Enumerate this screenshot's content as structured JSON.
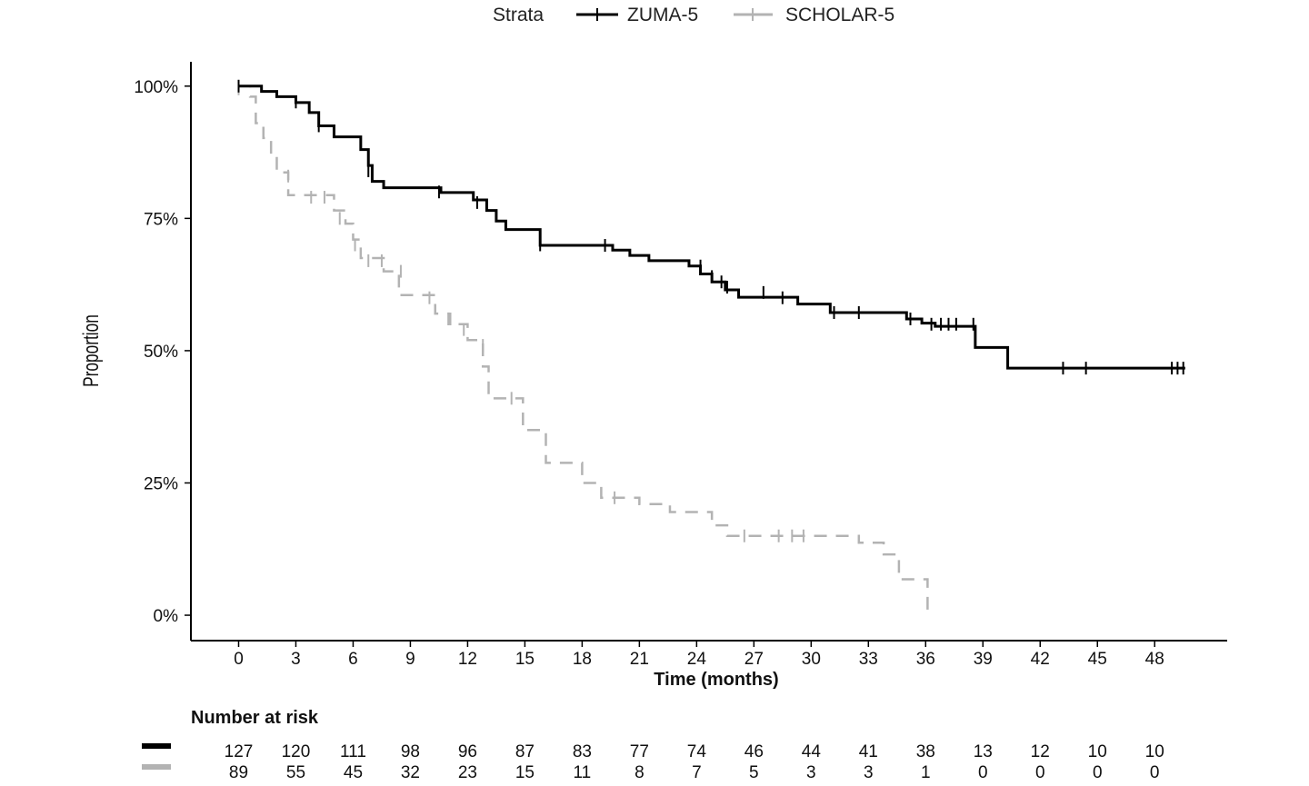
{
  "chart_data": {
    "type": "line",
    "subtype": "kaplan-meier step",
    "title": "",
    "xlabel": "Time (months)",
    "ylabel": "Proportion",
    "xlim": [
      -2.5,
      51.8
    ],
    "ylim": [
      -4.8,
      104.6
    ],
    "x_ticks": [
      0,
      3,
      6,
      9,
      12,
      15,
      18,
      21,
      24,
      27,
      30,
      33,
      36,
      39,
      42,
      45,
      48
    ],
    "y_ticks": [
      0,
      25,
      50,
      75,
      100
    ],
    "y_tick_labels": [
      "0%",
      "25%",
      "50%",
      "75%",
      "100%"
    ],
    "grid": false,
    "legend": {
      "title": "Strata",
      "placement": "top"
    },
    "series": [
      {
        "name": "ZUMA-5",
        "color": "#000000",
        "steps": [
          [
            0,
            100
          ],
          [
            1.2,
            99
          ],
          [
            2,
            98
          ],
          [
            3,
            96.9
          ],
          [
            3.7,
            95
          ],
          [
            4.2,
            92.5
          ],
          [
            5,
            90.4
          ],
          [
            6.4,
            88
          ],
          [
            6.8,
            85
          ],
          [
            7,
            82
          ],
          [
            7.6,
            80.8
          ],
          [
            10.6,
            79.9
          ],
          [
            12.3,
            78.5
          ],
          [
            13,
            76.5
          ],
          [
            13.5,
            74.5
          ],
          [
            14,
            72.9
          ],
          [
            15.8,
            69.9
          ],
          [
            19.6,
            69
          ],
          [
            20.5,
            68
          ],
          [
            21.5,
            67
          ],
          [
            23.6,
            66
          ],
          [
            24.2,
            64.5
          ],
          [
            24.8,
            63
          ],
          [
            25.5,
            61.5
          ],
          [
            26.2,
            60.1
          ],
          [
            29.3,
            58.8
          ],
          [
            31,
            57.2
          ],
          [
            35,
            56
          ],
          [
            35.8,
            55.2
          ],
          [
            36.5,
            54.6
          ],
          [
            38.6,
            50.6
          ],
          [
            40.3,
            46.7
          ]
        ],
        "end": 49.6,
        "censor": [
          [
            0,
            100
          ],
          [
            3,
            97
          ],
          [
            4.2,
            92.5
          ],
          [
            6.8,
            84
          ],
          [
            10.5,
            80
          ],
          [
            12.5,
            78
          ],
          [
            15.8,
            70
          ],
          [
            19.2,
            69.9
          ],
          [
            24.2,
            66
          ],
          [
            24.8,
            64
          ],
          [
            25.3,
            63
          ],
          [
            25.6,
            62
          ],
          [
            27.5,
            61
          ],
          [
            28.5,
            60
          ],
          [
            31.2,
            57.2
          ],
          [
            32.5,
            57.2
          ],
          [
            35.2,
            56
          ],
          [
            36.3,
            55
          ],
          [
            36.8,
            55
          ],
          [
            37.2,
            55
          ],
          [
            37.6,
            55
          ],
          [
            38.5,
            55
          ],
          [
            43.2,
            46.7
          ],
          [
            44.4,
            46.7
          ],
          [
            48.9,
            46.7
          ],
          [
            49.2,
            46.7
          ],
          [
            49.5,
            46.7
          ]
        ]
      },
      {
        "name": "SCHOLAR-5",
        "color": "#b3b3b3",
        "steps": [
          [
            0,
            100
          ],
          [
            0.6,
            98
          ],
          [
            0.9,
            93
          ],
          [
            1.3,
            90.2
          ],
          [
            1.7,
            87
          ],
          [
            2,
            83.7
          ],
          [
            2.6,
            79.4
          ],
          [
            5,
            76.5
          ],
          [
            5.6,
            74
          ],
          [
            6,
            71
          ],
          [
            6.4,
            67.5
          ],
          [
            7.6,
            65
          ],
          [
            8.4,
            60.5
          ],
          [
            10.3,
            57
          ],
          [
            11,
            55
          ],
          [
            12,
            52
          ],
          [
            12.8,
            47
          ],
          [
            13.1,
            41
          ],
          [
            14.9,
            35
          ],
          [
            16.1,
            28.8
          ],
          [
            18,
            25
          ],
          [
            19,
            22.2
          ],
          [
            21,
            21
          ],
          [
            22.6,
            19.5
          ],
          [
            24.8,
            17
          ],
          [
            25.6,
            15
          ],
          [
            32.5,
            13.7
          ],
          [
            33.8,
            11.5
          ],
          [
            34.6,
            6.8
          ],
          [
            36.1,
            1
          ]
        ],
        "end": 36.1,
        "censor": [
          [
            0,
            99.5
          ],
          [
            2.6,
            83
          ],
          [
            3.8,
            79
          ],
          [
            4.5,
            79
          ],
          [
            5.3,
            75
          ],
          [
            6.1,
            70
          ],
          [
            6.8,
            67
          ],
          [
            7.5,
            67
          ],
          [
            8.5,
            65
          ],
          [
            10,
            60
          ],
          [
            11.1,
            56
          ],
          [
            11.8,
            54
          ],
          [
            12.8,
            51
          ],
          [
            14.3,
            41
          ],
          [
            19.7,
            22.2
          ],
          [
            26.5,
            15
          ],
          [
            28.3,
            15
          ],
          [
            29,
            15
          ],
          [
            29.6,
            15
          ]
        ]
      }
    ],
    "risk_table": {
      "title": "Number at risk",
      "rows": [
        {
          "name": "ZUMA-5",
          "color": "#000000",
          "values": [
            127,
            120,
            111,
            98,
            96,
            87,
            83,
            77,
            74,
            46,
            44,
            41,
            38,
            13,
            12,
            10,
            10
          ]
        },
        {
          "name": "SCHOLAR-5",
          "color": "#b3b3b3",
          "values": [
            89,
            55,
            45,
            32,
            23,
            15,
            11,
            8,
            7,
            5,
            3,
            3,
            1,
            0,
            0,
            0,
            0
          ]
        }
      ]
    }
  }
}
